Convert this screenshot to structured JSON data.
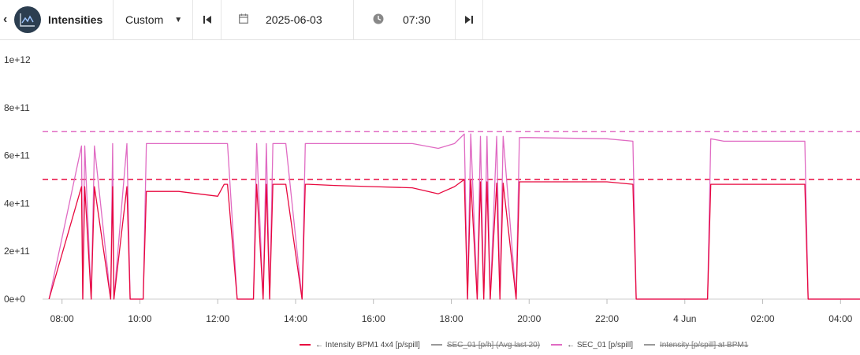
{
  "toolbar": {
    "title": "Intensities",
    "preset": "Custom",
    "date": "2025-06-03",
    "time": "07:30"
  },
  "colors": {
    "intensity": "#e8093f",
    "sec01": "#e06bc3",
    "disabled": "#999999"
  },
  "chart_data": {
    "type": "line",
    "title": "",
    "xlabel": "",
    "ylabel": "",
    "ylim": [
      0,
      1000000000000.0
    ],
    "y_ticks": [
      "0e+0",
      "2e+11",
      "4e+11",
      "6e+11",
      "8e+11",
      "1e+12"
    ],
    "x_range": [
      "07:30",
      "04:30"
    ],
    "x_ticks": [
      "08:00",
      "10:00",
      "12:00",
      "14:00",
      "16:00",
      "18:00",
      "20:00",
      "22:00",
      "4 Jun",
      "02:00",
      "04:00"
    ],
    "grid": false,
    "legend_position": "bottom",
    "reference_lines": [
      {
        "series": "SEC_01 [p/spill]",
        "y": 700000000000.0,
        "style": "dashed"
      },
      {
        "series": "← Intensity BPM1 4x4 [p/spill]",
        "y": 500000000000.0,
        "style": "dashed"
      }
    ],
    "series": [
      {
        "name": "← Intensity BPM1 4x4 [p/spill]",
        "visible": true,
        "x": [
          "07:40",
          "08:30",
          "08:32",
          "08:35",
          "08:45",
          "08:50",
          "09:15",
          "09:18",
          "09:20",
          "09:40",
          "09:45",
          "10:05",
          "10:10",
          "11:00",
          "12:00",
          "12:10",
          "12:15",
          "12:30",
          "12:35",
          "12:55",
          "13:00",
          "13:10",
          "13:15",
          "13:20",
          "13:25",
          "13:45",
          "14:10",
          "14:15",
          "14:20",
          "15:00",
          "16:00",
          "17:00",
          "17:40",
          "18:05",
          "18:20",
          "18:25",
          "18:30",
          "18:40",
          "18:45",
          "18:50",
          "18:55",
          "19:00",
          "19:10",
          "19:15",
          "19:20",
          "19:40",
          "19:45",
          "20:00",
          "22:00",
          "22:40",
          "22:45",
          "22:50",
          "00:35",
          "00:40",
          "01:00",
          "02:00",
          "03:05",
          "03:10",
          "03:15",
          "04:30"
        ],
        "y": [
          0,
          470000000000.0,
          0,
          470000000000.0,
          0,
          470000000000.0,
          0,
          470000000000.0,
          0,
          470000000000.0,
          0,
          0,
          450000000000.0,
          450000000000.0,
          430000000000.0,
          480000000000.0,
          480000000000.0,
          0,
          0,
          0,
          480000000000.0,
          0,
          480000000000.0,
          0,
          480000000000.0,
          480000000000.0,
          0,
          480000000000.0,
          480000000000.0,
          475000000000.0,
          470000000000.0,
          465000000000.0,
          440000000000.0,
          470000000000.0,
          500000000000.0,
          0,
          500000000000.0,
          0,
          490000000000.0,
          0,
          490000000000.0,
          0,
          485000000000.0,
          0,
          485000000000.0,
          0,
          490000000000.0,
          490000000000.0,
          490000000000.0,
          480000000000.0,
          0,
          0,
          0,
          480000000000.0,
          480000000000.0,
          480000000000.0,
          480000000000.0,
          0,
          0,
          0
        ]
      },
      {
        "name": "SEC_01 [p/h] (Avg last 20)",
        "visible": false
      },
      {
        "name": "← SEC_01 [p/spill]",
        "visible": true,
        "x": [
          "07:40",
          "08:30",
          "08:32",
          "08:35",
          "08:45",
          "08:50",
          "09:15",
          "09:18",
          "09:20",
          "09:40",
          "09:45",
          "10:05",
          "10:10",
          "11:00",
          "12:00",
          "12:10",
          "12:15",
          "12:30",
          "12:35",
          "12:55",
          "13:00",
          "13:10",
          "13:15",
          "13:20",
          "13:25",
          "13:45",
          "14:10",
          "14:15",
          "14:20",
          "15:00",
          "16:00",
          "17:00",
          "17:40",
          "18:05",
          "18:20",
          "18:25",
          "18:30",
          "18:40",
          "18:45",
          "18:50",
          "18:55",
          "19:00",
          "19:10",
          "19:15",
          "19:20",
          "19:40",
          "19:45",
          "20:00",
          "22:00",
          "22:40",
          "22:45",
          "22:50",
          "00:35",
          "00:40",
          "01:00",
          "02:00",
          "03:05",
          "03:10",
          "03:15",
          "04:30"
        ],
        "y": [
          0,
          640000000000.0,
          0,
          640000000000.0,
          0,
          640000000000.0,
          0,
          650000000000.0,
          0,
          650000000000.0,
          0,
          0,
          650000000000.0,
          650000000000.0,
          650000000000.0,
          650000000000.0,
          650000000000.0,
          0,
          0,
          0,
          650000000000.0,
          0,
          650000000000.0,
          0,
          650000000000.0,
          650000000000.0,
          0,
          650000000000.0,
          650000000000.0,
          650000000000.0,
          650000000000.0,
          650000000000.0,
          630000000000.0,
          650000000000.0,
          690000000000.0,
          0,
          690000000000.0,
          0,
          680000000000.0,
          0,
          680000000000.0,
          0,
          680000000000.0,
          0,
          680000000000.0,
          0,
          675000000000.0,
          675000000000.0,
          670000000000.0,
          660000000000.0,
          0,
          0,
          0,
          670000000000.0,
          660000000000.0,
          660000000000.0,
          660000000000.0,
          0,
          0,
          0
        ]
      },
      {
        "name": "Intensity [p/spill] at BPM1",
        "visible": false
      }
    ]
  }
}
